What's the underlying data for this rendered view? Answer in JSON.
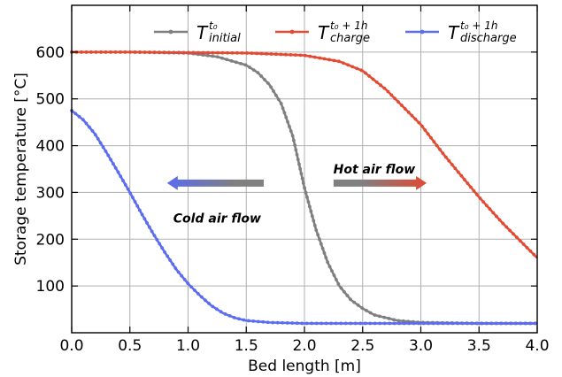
{
  "chart_data": {
    "type": "line",
    "xlabel": "Bed length [m]",
    "ylabel": "Storage temperature  [°C]",
    "xlim": [
      0.0,
      4.0
    ],
    "ylim": [
      0,
      700
    ],
    "x_ticks": [
      0.0,
      0.5,
      1.0,
      1.5,
      2.0,
      2.5,
      3.0,
      3.5,
      4.0
    ],
    "x_tick_labels": [
      "0.0",
      "0.5",
      "1.0",
      "1.5",
      "2.0",
      "2.5",
      "3.0",
      "3.5",
      "4.0"
    ],
    "y_ticks": [
      100,
      200,
      300,
      400,
      500,
      600
    ],
    "y_tick_labels": [
      "100",
      "200",
      "300",
      "400",
      "500",
      "600"
    ],
    "grid": true,
    "legend_position": "top",
    "series": [
      {
        "name": "T_initial^t0",
        "label_main": "T",
        "label_sup": "t₀",
        "label_sub": "initial",
        "color": "#7f7f7f",
        "x": [
          0.0,
          0.5,
          1.0,
          1.25,
          1.5,
          1.6,
          1.7,
          1.8,
          1.9,
          2.0,
          2.1,
          2.2,
          2.3,
          2.4,
          2.5,
          2.6,
          2.8,
          3.0,
          3.5,
          4.0
        ],
        "y": [
          600,
          600,
          598,
          590,
          572,
          556,
          530,
          490,
          420,
          310,
          220,
          150,
          100,
          70,
          52,
          38,
          26,
          22,
          20,
          20
        ]
      },
      {
        "name": "T_charge^t0+1h",
        "label_main": "T",
        "label_sup": "t₀ + 1h",
        "label_sub": "charge",
        "color": "#e24a33",
        "x": [
          0.0,
          0.5,
          1.0,
          1.5,
          2.0,
          2.3,
          2.5,
          2.7,
          2.9,
          3.0,
          3.2,
          3.4,
          3.5,
          3.7,
          3.9,
          4.0
        ],
        "y": [
          600,
          600,
          599,
          598,
          593,
          580,
          560,
          520,
          470,
          445,
          380,
          320,
          290,
          235,
          185,
          160
        ]
      },
      {
        "name": "T_discharge^t0+1h",
        "label_main": "T",
        "label_sup": "t₀ + 1h",
        "label_sub": "discharge",
        "color": "#5b6cf0",
        "x": [
          0.0,
          0.1,
          0.2,
          0.3,
          0.4,
          0.5,
          0.6,
          0.7,
          0.8,
          0.9,
          1.0,
          1.1,
          1.2,
          1.3,
          1.4,
          1.5,
          1.7,
          2.0,
          3.0,
          4.0
        ],
        "y": [
          475,
          455,
          425,
          385,
          343,
          300,
          255,
          212,
          172,
          135,
          105,
          80,
          58,
          42,
          32,
          26,
          22,
          20,
          20,
          20
        ]
      }
    ],
    "annotations": [
      {
        "text": "Hot air flow",
        "x": 2.6,
        "y": 350
      },
      {
        "text": "Cold air flow",
        "x": 1.25,
        "y": 245
      }
    ],
    "arrows": [
      {
        "name": "hot-air-arrow",
        "from": [
          2.25,
          320
        ],
        "to": [
          3.05,
          320
        ],
        "colors": [
          "#808080",
          "#e24a33"
        ]
      },
      {
        "name": "cold-air-arrow",
        "from": [
          1.65,
          320
        ],
        "to": [
          0.82,
          320
        ],
        "colors": [
          "#808080",
          "#5b6cf0"
        ]
      }
    ]
  }
}
